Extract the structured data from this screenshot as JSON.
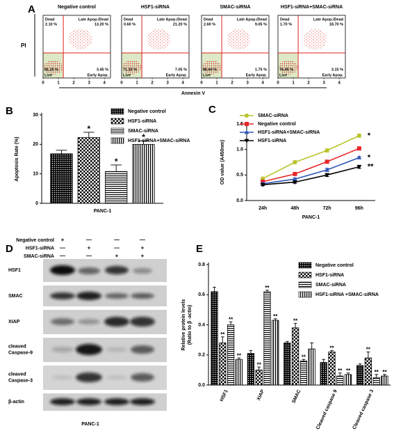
{
  "panel_labels": [
    "A",
    "B",
    "C",
    "D",
    "E"
  ],
  "flow": {
    "y_label": "PI",
    "x_label": "Annexin V",
    "xlim": [
      0,
      4.4
    ],
    "ticks": [
      0,
      1,
      2,
      3,
      4
    ],
    "quadrants": {
      "ul": "Dead",
      "ur": "Late Apop./Dead",
      "ll": "Live",
      "lr": "Early Apop."
    },
    "plots": [
      {
        "title": "Negative control",
        "ul": "2.10 %",
        "ur": "13.20 %",
        "ll": "81.25 %",
        "lr": "3.45 %"
      },
      {
        "title": "HSF1-siRNA",
        "ul": "0.60 %",
        "ur": "21.20 %",
        "ll": "71.15 %",
        "lr": "7.05 %"
      },
      {
        "title": "SMAC-siRNA",
        "ul": "2.60 %",
        "ur": "9.05 %",
        "ll": "86.60 %",
        "lr": "1.75 %"
      },
      {
        "title": "HSF1-siRNA+SMAC-siRNA",
        "ul": "1.70 %",
        "ur": "18.70 %",
        "ll": "76.45 %",
        "lr": "3.15 %"
      }
    ]
  },
  "western": {
    "treatments": [
      {
        "name": "Negative control",
        "signs": [
          "+",
          "—",
          "—",
          "—"
        ]
      },
      {
        "name": "HSF1-siRNA",
        "signs": [
          "—",
          "+",
          "—",
          "+"
        ]
      },
      {
        "name": "SMAC-siRNA",
        "signs": [
          "—",
          "—",
          "+",
          "+"
        ]
      }
    ],
    "proteins": [
      [
        "HSF1"
      ],
      [
        "SMAC"
      ],
      [
        "XIAP"
      ],
      [
        "cleaved",
        "Caspase-9"
      ],
      [
        "cleaved",
        "Caspase-3"
      ],
      [
        "β-actin"
      ]
    ],
    "xlabel": "PANC-1"
  },
  "chart_data": [
    {
      "type": "bar",
      "ylabel": "Apoptosis Rate (%)",
      "categories": [
        "PANC-1"
      ],
      "ylim": [
        0,
        30
      ],
      "yticks": [
        0,
        10,
        20,
        30
      ],
      "series": [
        {
          "name": "Negative control",
          "pattern": "checker-fine",
          "values": [
            16.8
          ],
          "errors": [
            1.2
          ],
          "significance": [
            null
          ]
        },
        {
          "name": "HSF1-siRNA",
          "pattern": "checker",
          "values": [
            22.3
          ],
          "errors": [
            1.8
          ],
          "significance": [
            "*"
          ]
        },
        {
          "name": "SMAC-siRNA",
          "pattern": "hlines",
          "values": [
            10.8
          ],
          "errors": [
            2.2
          ],
          "significance": [
            "*"
          ]
        },
        {
          "name": "HSF1-siRNA+SMAC-siRNA",
          "pattern": "vlines",
          "values": [
            20.0
          ],
          "errors": [
            1.2
          ],
          "significance": [
            "*"
          ]
        }
      ]
    },
    {
      "type": "line",
      "ylabel": "OD value (A450nm)",
      "xlabel": "PANC-1",
      "categories": [
        "24h",
        "48h",
        "72h",
        "96h"
      ],
      "ylim": [
        0,
        1.5
      ],
      "yticks": [
        {
          "value": 0,
          "label": "0.0"
        },
        0.5,
        {
          "value": 1,
          "label": "1.0"
        },
        1.5
      ],
      "series": [
        {
          "name": "SMAC-siRNA",
          "color": "#b9c42c",
          "marker": "circle",
          "values": [
            0.43,
            0.75,
            0.98,
            1.27
          ],
          "errors": [
            0.02,
            0.03,
            0.03,
            0.03
          ],
          "significance": [
            null,
            null,
            null,
            "*"
          ]
        },
        {
          "name": "Negative control",
          "color": "#e8262a",
          "marker": "square",
          "values": [
            0.37,
            0.52,
            0.76,
            1.02
          ],
          "errors": [
            0.02,
            0.02,
            0.02,
            0.02
          ],
          "significance": [
            null,
            null,
            null,
            null
          ]
        },
        {
          "name": "HSF1-siRNA+SMAC-siRNA",
          "color": "#2f56b5",
          "marker": "triangle",
          "values": [
            0.33,
            0.42,
            0.6,
            0.84
          ],
          "errors": [
            0.02,
            0.02,
            0.03,
            0.02
          ],
          "significance": [
            null,
            null,
            null,
            "*"
          ]
        },
        {
          "name": "HSF1-siRNA",
          "color": "#000000",
          "marker": "triangle-down",
          "values": [
            0.31,
            0.36,
            0.5,
            0.66
          ],
          "errors": [
            0.02,
            0.02,
            0.03,
            0.03
          ],
          "significance": [
            null,
            null,
            null,
            "**"
          ]
        }
      ]
    },
    {
      "type": "bar",
      "ylabel": [
        "Relative  protein levels",
        "(Ratio to β -actin)"
      ],
      "categories": [
        "HSF1",
        "XIAP",
        "SMAC",
        "Cleaved caspase 9",
        "Cleaved caspase 3"
      ],
      "ylim": [
        0,
        0.8
      ],
      "yticks": [
        {
          "value": 0,
          "label": "0.0"
        },
        0.2,
        0.4,
        0.6,
        0.8
      ],
      "series": [
        {
          "name": "Negative control",
          "pattern": "checker-fine",
          "values": [
            0.62,
            0.21,
            0.28,
            0.15,
            0.13
          ],
          "errors": [
            0.03,
            0.02,
            0.01,
            0.02,
            0.01
          ],
          "significance": [
            null,
            null,
            null,
            null,
            null
          ]
        },
        {
          "name": "HSF1-siRNA",
          "pattern": "checker",
          "values": [
            0.28,
            0.1,
            0.38,
            0.22,
            0.18
          ],
          "errors": [
            0.04,
            0.02,
            0.03,
            0.01,
            0.04
          ],
          "significance": [
            "**",
            "**",
            "**",
            "**",
            "**"
          ]
        },
        {
          "name": "SMAC-siRNA",
          "pattern": "hlines",
          "values": [
            0.4,
            0.62,
            0.16,
            0.06,
            0.05
          ],
          "errors": [
            0.02,
            0.01,
            0.01,
            0.02,
            0.02
          ],
          "significance": [
            "**",
            "**",
            "**",
            "**",
            "**"
          ]
        },
        {
          "name": "HSF1-siRNA +SMAC-siRNA",
          "pattern": "vlines",
          "values": [
            0.17,
            0.43,
            0.24,
            0.07,
            0.06
          ],
          "errors": [
            0.01,
            0.01,
            0.04,
            0.01,
            0.01
          ],
          "significance": [
            "**",
            "**",
            null,
            "**",
            "**"
          ]
        }
      ]
    }
  ]
}
